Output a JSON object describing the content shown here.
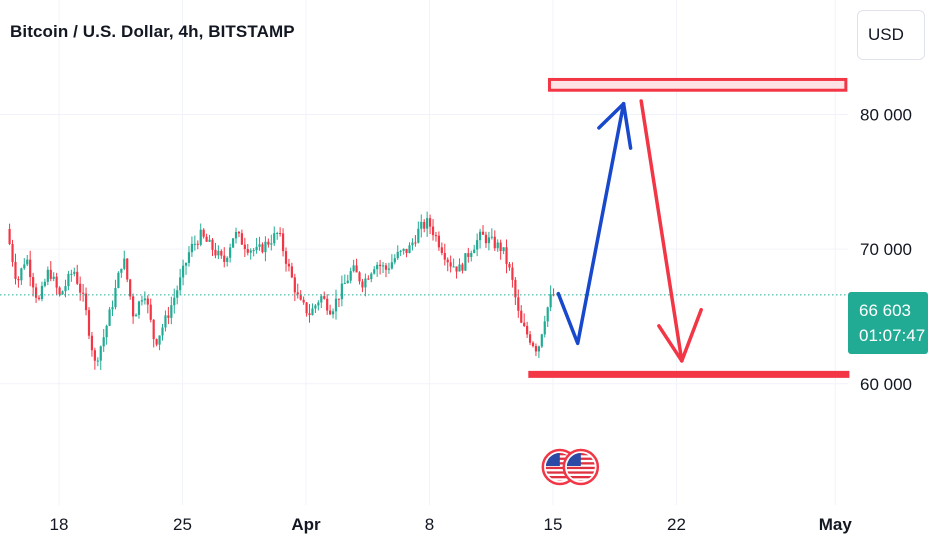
{
  "header": {
    "title": "Bitcoin / U.S. Dollar, 4h, BITSTAMP",
    "currency_label": "USD"
  },
  "price_badge": {
    "price": "66 603",
    "countdown": "01:07:47",
    "color": "#22ab94"
  },
  "chart_data": {
    "type": "candlestick",
    "symbol": "Bitcoin / U.S. Dollar",
    "interval": "4h",
    "exchange": "BITSTAMP",
    "ylim": [
      51000,
      88500
    ],
    "y_ticks": [
      {
        "value": 80000,
        "label": "80 000"
      },
      {
        "value": 70000,
        "label": "70 000"
      },
      {
        "value": 60000,
        "label": "60 000"
      }
    ],
    "x_ticks": [
      {
        "day": 18,
        "label": "18",
        "bold": false
      },
      {
        "day": 25,
        "label": "25",
        "bold": false
      },
      {
        "day": 32,
        "label": "Apr",
        "bold": true
      },
      {
        "day": 39,
        "label": "8",
        "bold": false
      },
      {
        "day": 46,
        "label": "15",
        "bold": false
      },
      {
        "day": 53,
        "label": "22",
        "bold": false
      },
      {
        "day": 62,
        "label": "May",
        "bold": true
      }
    ],
    "last_price": 66603,
    "colors": {
      "up": "#22ab94",
      "down": "#f23645",
      "grid": "#f0f3fa"
    },
    "price_path": [
      [
        15.2,
        71500
      ],
      [
        15.8,
        67500
      ],
      [
        16.3,
        69500
      ],
      [
        17.0,
        66000
      ],
      [
        17.6,
        68500
      ],
      [
        18.2,
        66500
      ],
      [
        19.0,
        68500
      ],
      [
        19.6,
        66000
      ],
      [
        20.2,
        61500
      ],
      [
        20.7,
        63500
      ],
      [
        21.2,
        66000
      ],
      [
        21.8,
        69500
      ],
      [
        22.4,
        65000
      ],
      [
        23.0,
        67000
      ],
      [
        23.6,
        63000
      ],
      [
        24.3,
        65000
      ],
      [
        25.0,
        67500
      ],
      [
        25.6,
        70000
      ],
      [
        26.2,
        71000
      ],
      [
        26.9,
        70000
      ],
      [
        27.5,
        69000
      ],
      [
        28.1,
        71200
      ],
      [
        28.8,
        70200
      ],
      [
        29.4,
        69800
      ],
      [
        30.0,
        70500
      ],
      [
        30.6,
        71200
      ],
      [
        31.2,
        68500
      ],
      [
        31.8,
        66000
      ],
      [
        32.4,
        65200
      ],
      [
        33.0,
        66500
      ],
      [
        33.6,
        65500
      ],
      [
        34.2,
        67000
      ],
      [
        34.8,
        68500
      ],
      [
        35.4,
        67500
      ],
      [
        36.1,
        69000
      ],
      [
        36.7,
        68500
      ],
      [
        37.3,
        69500
      ],
      [
        38.0,
        70000
      ],
      [
        38.6,
        71500
      ],
      [
        39.1,
        72000
      ],
      [
        39.7,
        70500
      ],
      [
        40.3,
        69000
      ],
      [
        40.9,
        68500
      ],
      [
        41.5,
        70000
      ],
      [
        42.1,
        71000
      ],
      [
        42.7,
        70500
      ],
      [
        43.3,
        70000
      ],
      [
        43.8,
        68000
      ],
      [
        44.3,
        64500
      ],
      [
        44.8,
        63500
      ],
      [
        45.3,
        62500
      ],
      [
        45.7,
        65000
      ],
      [
        46.1,
        66603
      ]
    ],
    "annotations": {
      "resistance_zone": {
        "x_start": 45.8,
        "x_end": 62.6,
        "y_low": 81800,
        "y_high": 82600,
        "color": "#f23645"
      },
      "support_line": {
        "x_start": 44.6,
        "x_end": 62.8,
        "y": 60700,
        "color": "#f23645"
      },
      "projection_up": {
        "color": "#1848cc",
        "path": [
          [
            46.3,
            66700
          ],
          [
            47.4,
            63000
          ],
          [
            50.0,
            80800
          ]
        ],
        "arrowhead": [
          [
            48.6,
            79000
          ],
          [
            50.0,
            80800
          ],
          [
            50.4,
            77500
          ]
        ]
      },
      "projection_down": {
        "color": "#f23645",
        "path": [
          [
            51.0,
            81000
          ],
          [
            53.3,
            61700
          ]
        ],
        "arrowhead": [
          [
            52.0,
            64300
          ],
          [
            53.3,
            61700
          ],
          [
            54.4,
            65500
          ]
        ]
      },
      "event_icons": {
        "day": 46.5,
        "count": 2,
        "icon": "us-flag-icon"
      }
    }
  }
}
